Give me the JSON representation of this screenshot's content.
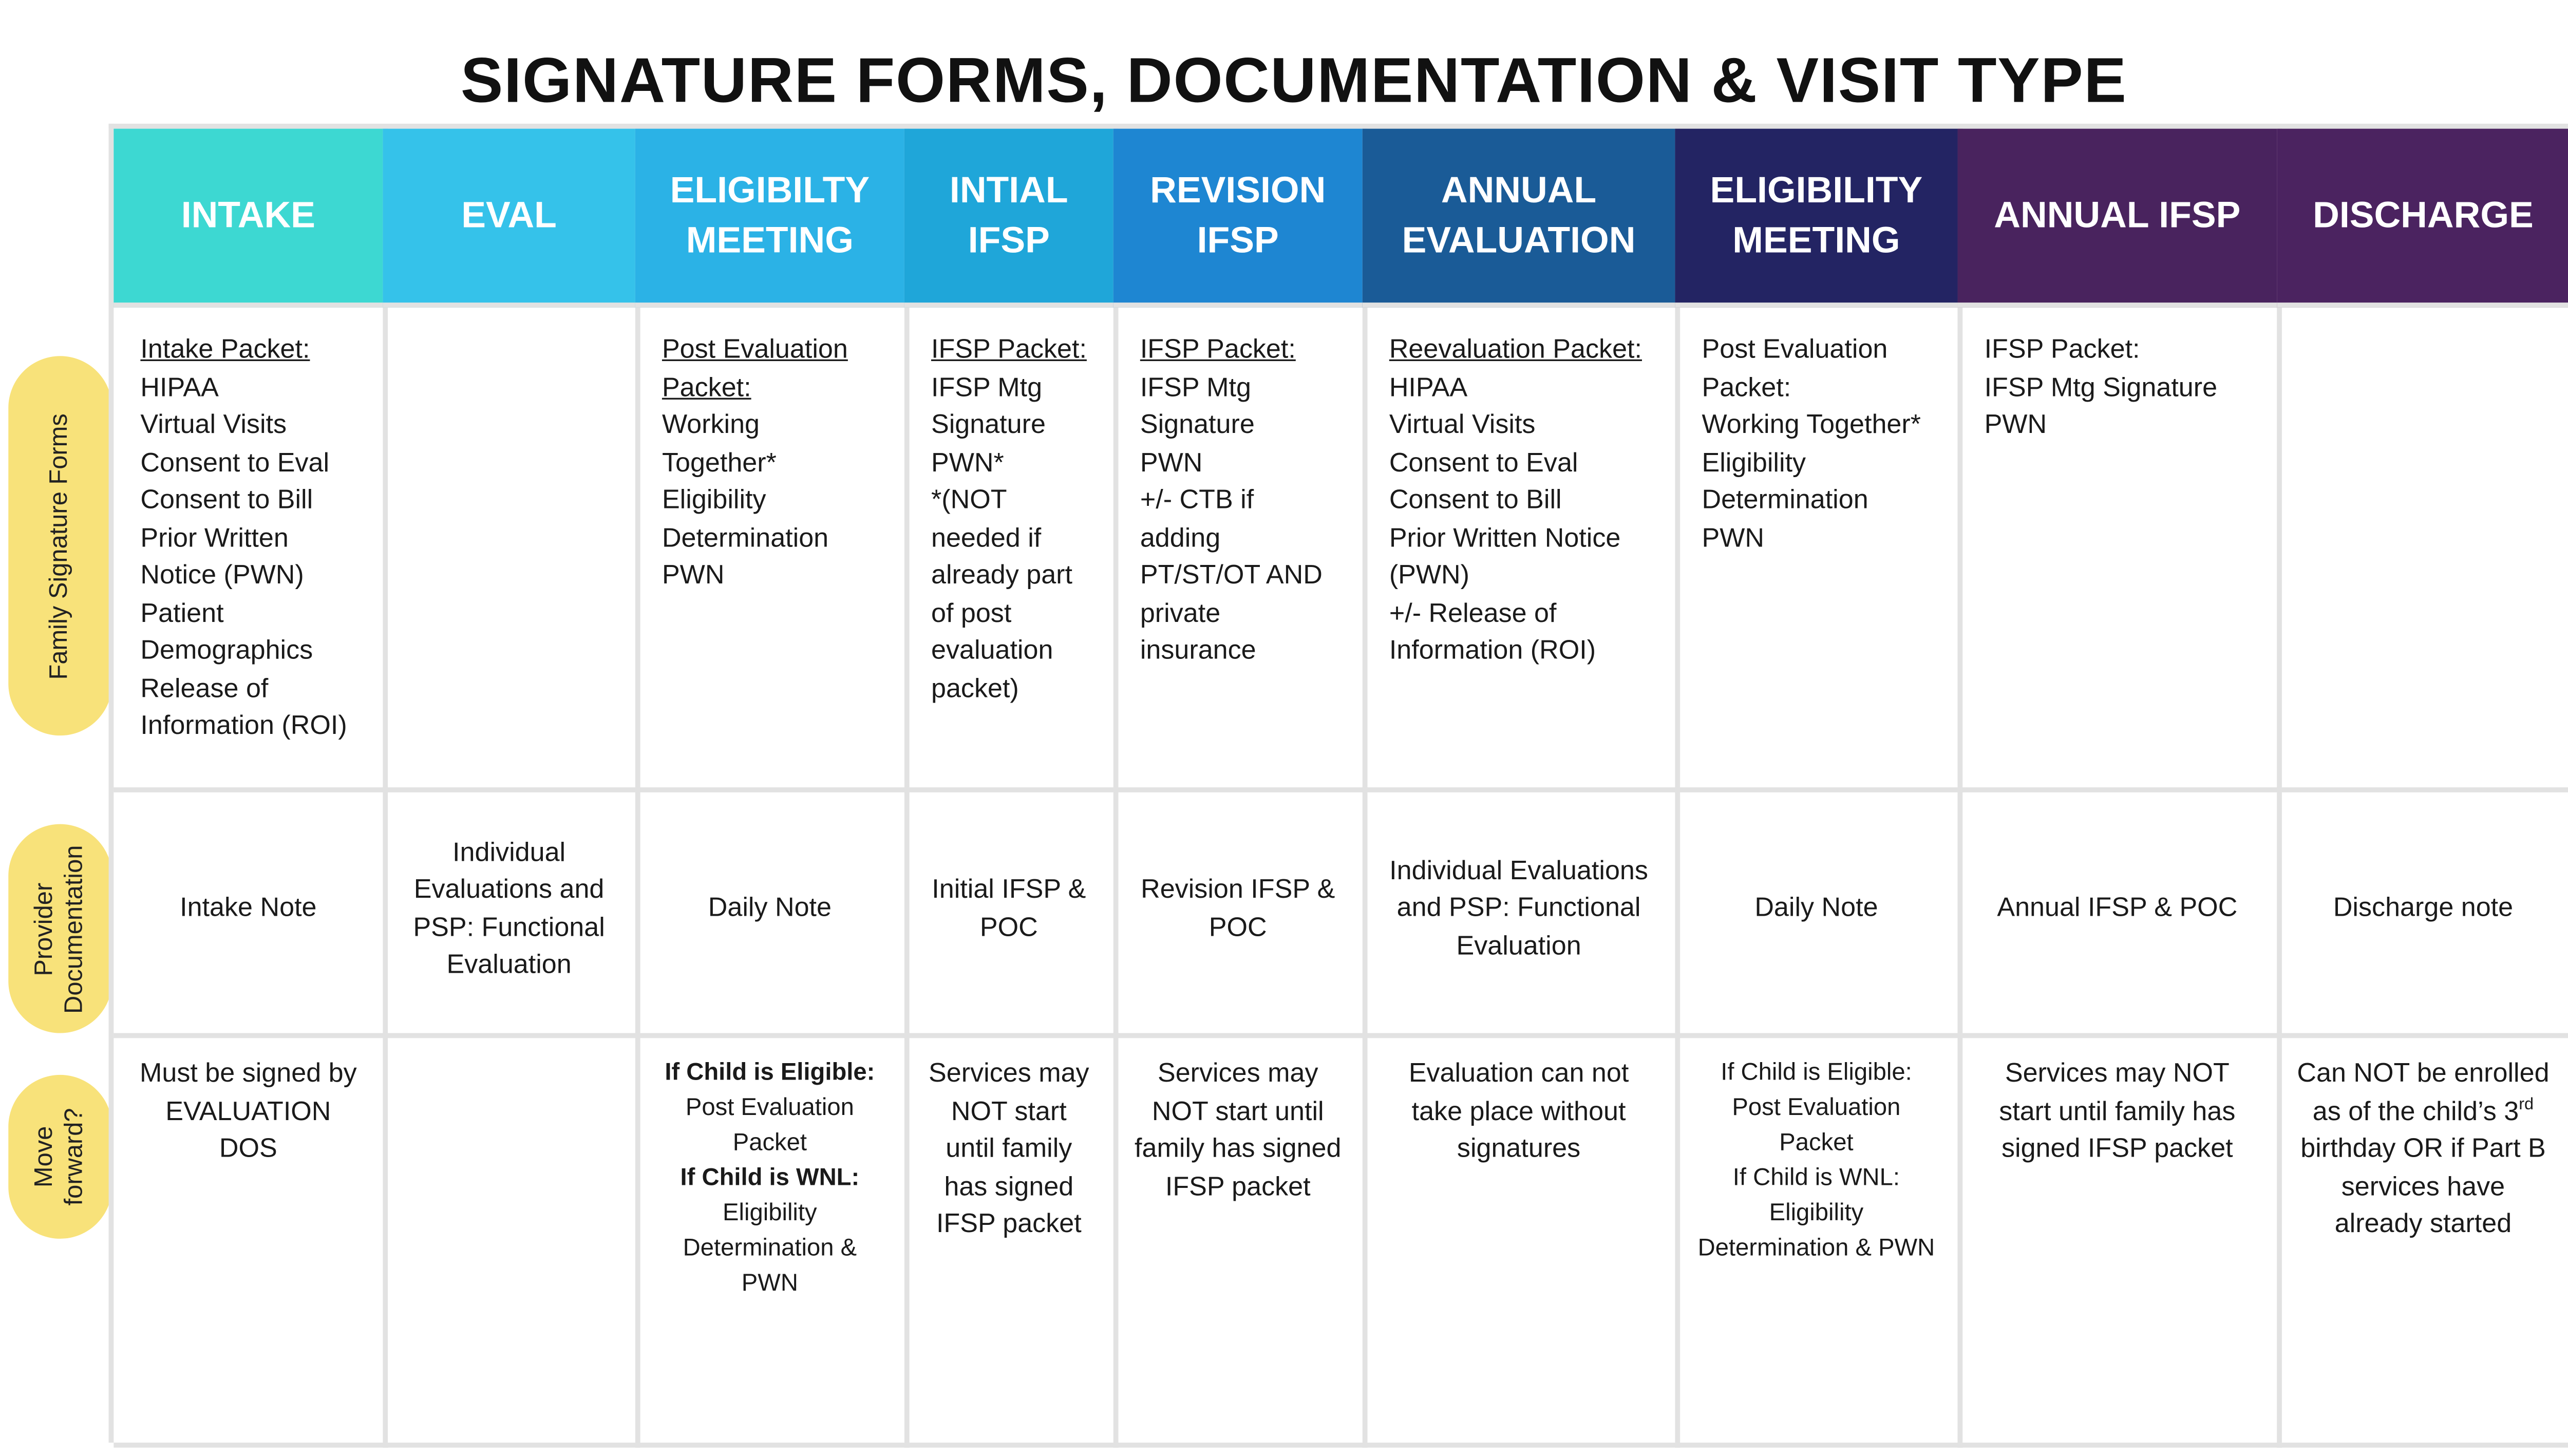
{
  "title": "SIGNATURE FORMS, DOCUMENTATION & VISIT TYPE",
  "row_labels": [
    "Family Signature Forms",
    "Provider Documentation",
    "Move forward?"
  ],
  "columns": [
    {
      "header": "INTAKE",
      "color": "#3dd8d2",
      "cells": [
        {
          "heading": "Intake Packet:",
          "items": [
            "HIPAA",
            "Virtual Visits",
            "Consent to Eval",
            "Consent to Bill",
            "Prior Written Notice (PWN)",
            "Patient Demographics",
            "Release of Information (ROI)"
          ]
        },
        {
          "items": [
            "Intake Note"
          ]
        },
        {
          "items": [
            "Must be signed by EVALUATION DOS"
          ]
        }
      ]
    },
    {
      "header": "EVAL",
      "color": "#35c2ea",
      "cells": [
        null,
        {
          "items": [
            "Individual Evaluations and PSP: Functional Evaluation"
          ]
        },
        null
      ]
    },
    {
      "header": "ELIGIBILTY MEETING",
      "color": "#2bb2e6",
      "cells": [
        {
          "heading": "Post Evaluation Packet:",
          "items": [
            "Working Together*",
            "Eligibility Determination",
            "PWN"
          ]
        },
        {
          "items": [
            "Daily Note"
          ]
        },
        {
          "small": true,
          "items": [
            {
              "text": "If Child is Eligible:",
              "bold": true
            },
            "Post Evaluation Packet",
            {
              "text": "If Child is WNL:",
              "bold": true
            },
            "Eligibility Determination & PWN"
          ]
        }
      ]
    },
    {
      "header": "INTIAL IFSP",
      "color": "#1fa6d9",
      "cells": [
        {
          "heading": "IFSP Packet:",
          "items": [
            "IFSP Mtg Signature",
            "PWN*",
            "*(NOT needed if already part of post evaluation packet)"
          ]
        },
        {
          "items": [
            "Initial IFSP & POC"
          ]
        },
        {
          "items": [
            "Services may NOT start until family has signed IFSP packet"
          ]
        }
      ]
    },
    {
      "header": "REVISION IFSP",
      "color": "#1e86d2",
      "cells": [
        {
          "heading": "IFSP Packet:",
          "items": [
            "IFSP Mtg Signature",
            "PWN",
            "+/- CTB if adding PT/ST/OT AND private insurance"
          ]
        },
        {
          "items": [
            "Revision IFSP & POC"
          ]
        },
        {
          "items": [
            "Services may NOT start until family has signed IFSP packet"
          ]
        }
      ]
    },
    {
      "header": "ANNUAL EVALUATION",
      "color": "#1a5b97",
      "cells": [
        {
          "heading": "Reevaluation Packet:",
          "items": [
            "HIPAA",
            "Virtual Visits",
            "Consent to Eval",
            "Consent to Bill",
            "Prior Written Notice (PWN)",
            "+/- Release of Information (ROI)"
          ]
        },
        {
          "items": [
            "Individual Evaluations and PSP: Functional Evaluation"
          ]
        },
        {
          "items": [
            "Evaluation can not take place without signatures"
          ]
        }
      ]
    },
    {
      "header": "ELIGIBILITY MEETING",
      "color": "#232463",
      "cells": [
        {
          "items": [
            "Post Evaluation Packet:",
            "Working Together*",
            "Eligibility Determination",
            "PWN"
          ]
        },
        {
          "items": [
            "Daily Note"
          ]
        },
        {
          "small": true,
          "items": [
            "If Child is Eligible:",
            "Post Evaluation Packet",
            "If Child is WNL:",
            "Eligibility Determination & PWN"
          ]
        }
      ]
    },
    {
      "header": "ANNUAL IFSP",
      "color": "#49235e",
      "cells": [
        {
          "items": [
            "IFSP Packet:",
            "IFSP Mtg Signature",
            "PWN"
          ]
        },
        {
          "items": [
            "Annual IFSP & POC"
          ]
        },
        {
          "items": [
            "Services may NOT start until family has signed IFSP packet"
          ]
        }
      ]
    },
    {
      "header": "DISCHARGE",
      "color": "#4b2360",
      "cells": [
        null,
        {
          "items": [
            "Discharge note"
          ]
        },
        {
          "parts": [
            {
              "text": "Can NOT be enrolled as of the child’s 3"
            },
            {
              "text": "rd",
              "sup": true
            },
            {
              "text": " birthday OR if Part B services have already started"
            }
          ]
        }
      ]
    }
  ]
}
